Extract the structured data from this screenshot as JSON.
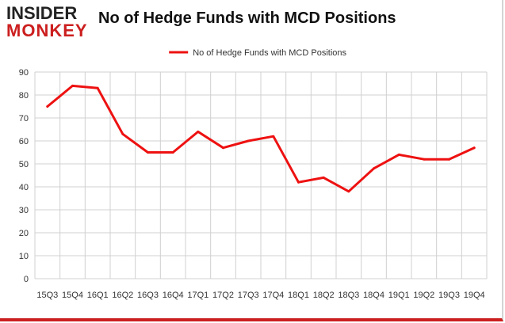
{
  "logo": {
    "line1": "INSIDER",
    "line2": "MONKEY"
  },
  "colors": {
    "series": "#ee1111",
    "grid": "#d0d0d0",
    "brand_red": "#cc1f1f"
  },
  "chart_data": {
    "type": "line",
    "title": "No of Hedge Funds with MCD Positions",
    "xlabel": "",
    "ylabel": "",
    "categories": [
      "15Q3",
      "15Q4",
      "16Q1",
      "16Q2",
      "16Q3",
      "16Q4",
      "17Q1",
      "17Q2",
      "17Q3",
      "17Q4",
      "18Q1",
      "18Q2",
      "18Q3",
      "18Q4",
      "19Q1",
      "19Q2",
      "19Q3",
      "19Q4"
    ],
    "series": [
      {
        "name": "No of Hedge Funds with MCD Positions",
        "values": [
          75,
          84,
          83,
          63,
          55,
          55,
          64,
          57,
          60,
          62,
          42,
          44,
          38,
          48,
          54,
          52,
          52,
          57
        ]
      }
    ],
    "ylim": [
      0,
      90
    ],
    "yticks": [
      0,
      10,
      20,
      30,
      40,
      50,
      60,
      70,
      80,
      90
    ],
    "grid": true,
    "legend_position": "top-center"
  }
}
